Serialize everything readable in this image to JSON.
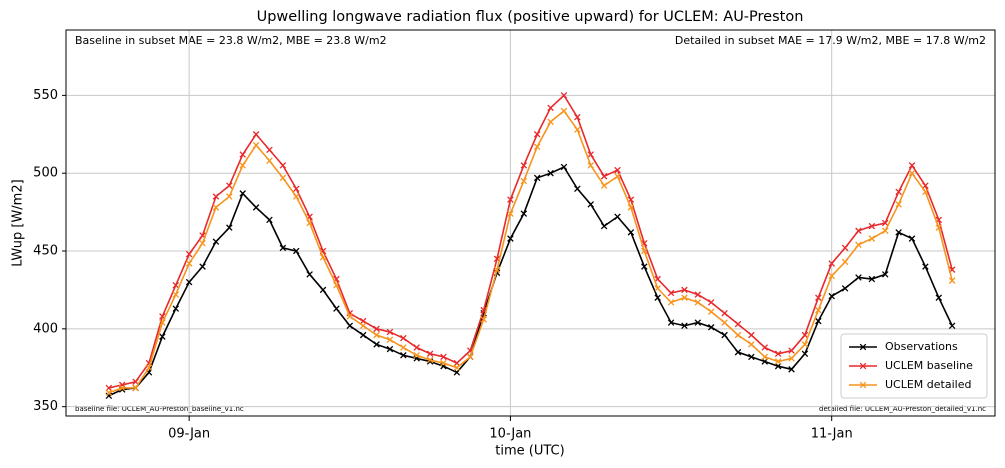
{
  "chart_data": {
    "type": "line",
    "title": "Upwelling longwave radiation flux (positive upward) for UCLEM: AU-Preston",
    "xlabel": "time (UTC)",
    "ylabel": "LWup [W/m2]",
    "annotations": {
      "top_left": "Baseline in subset MAE = 23.8 W/m2, MBE = 23.8 W/m2",
      "top_right": "Detailed in subset MAE = 17.9 W/m2, MBE = 17.8 W/m2",
      "bottom_left": "baseline file: UCLEM_AU-Preston_baseline_v1.nc",
      "bottom_right": "detailed file: UCLEM_AU-Preston_detailed_v1.nc"
    },
    "x": [
      18,
      19,
      20,
      21,
      22,
      23,
      24,
      25,
      26,
      27,
      28,
      29,
      30,
      31,
      32,
      33,
      34,
      35,
      36,
      37,
      38,
      39,
      40,
      41,
      42,
      43,
      44,
      45,
      46,
      47,
      48,
      49,
      50,
      51,
      52,
      53,
      54,
      55,
      56,
      57,
      58,
      59,
      60,
      61,
      62,
      63,
      64,
      65,
      66,
      67,
      68,
      69,
      70,
      71,
      72,
      73,
      74,
      75,
      76,
      77,
      78,
      79,
      80,
      81
    ],
    "series": [
      {
        "name": "Observations",
        "color": "#000000",
        "values": [
          357,
          361,
          362,
          372,
          395,
          413,
          430,
          440,
          456,
          465,
          487,
          478,
          470,
          452,
          450,
          435,
          425,
          413,
          402,
          396,
          390,
          387,
          383,
          381,
          379,
          376,
          372,
          382,
          410,
          436,
          458,
          474,
          497,
          500,
          504,
          490,
          480,
          466,
          472,
          462,
          440,
          420,
          404,
          402,
          404,
          401,
          396,
          385,
          382,
          379,
          376,
          374,
          384,
          405,
          421,
          426,
          433,
          432,
          435,
          462,
          458,
          440,
          420,
          402
        ]
      },
      {
        "name": "UCLEM baseline",
        "color": "#e8292b",
        "values": [
          362,
          364,
          366,
          378,
          408,
          428,
          448,
          460,
          485,
          492,
          512,
          525,
          515,
          505,
          490,
          472,
          450,
          432,
          410,
          405,
          400,
          398,
          394,
          388,
          384,
          382,
          378,
          386,
          412,
          445,
          483,
          505,
          525,
          542,
          550,
          536,
          512,
          498,
          502,
          483,
          455,
          432,
          423,
          425,
          422,
          417,
          410,
          403,
          396,
          388,
          384,
          386,
          396,
          420,
          442,
          452,
          463,
          466,
          468,
          488,
          505,
          492,
          470,
          438
        ]
      },
      {
        "name": "UCLEM detailed",
        "color": "#f7941d",
        "values": [
          359,
          362,
          362,
          375,
          404,
          422,
          442,
          455,
          478,
          485,
          505,
          518,
          508,
          497,
          485,
          468,
          446,
          428,
          408,
          402,
          396,
          393,
          388,
          383,
          380,
          378,
          375,
          382,
          406,
          438,
          474,
          495,
          517,
          533,
          540,
          528,
          505,
          492,
          498,
          478,
          450,
          426,
          417,
          420,
          417,
          411,
          404,
          396,
          390,
          382,
          379,
          381,
          390,
          412,
          434,
          443,
          454,
          458,
          463,
          480,
          500,
          488,
          465,
          431
        ]
      }
    ],
    "xlim": [
      14.8,
      84.2
    ],
    "xticks": [
      {
        "value": 24,
        "label": "09-Jan"
      },
      {
        "value": 48,
        "label": "10-Jan"
      },
      {
        "value": 72,
        "label": "11-Jan"
      }
    ],
    "ylim": [
      344,
      592
    ],
    "yticks": [
      350,
      400,
      450,
      500,
      550
    ],
    "grid": true,
    "legend": "lower right"
  }
}
